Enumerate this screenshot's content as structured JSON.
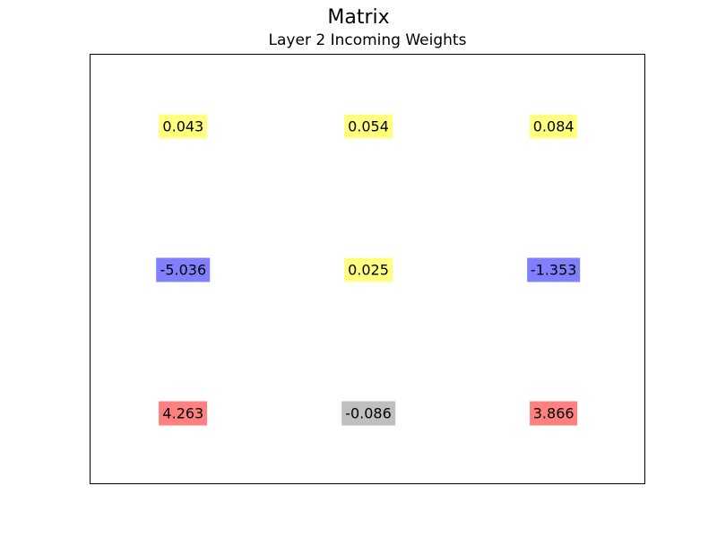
{
  "figure_title": "Matrix",
  "chart_data": {
    "type": "table",
    "title": "Layer 2 Incoming Weights",
    "rows": 3,
    "cols": 3,
    "cells": [
      [
        {
          "label": "0.043",
          "value": 0.043,
          "color": "#ffff80"
        },
        {
          "label": "0.054",
          "value": 0.054,
          "color": "#ffff80"
        },
        {
          "label": "0.084",
          "value": 0.084,
          "color": "#ffff80"
        }
      ],
      [
        {
          "label": "-5.036",
          "value": -5.036,
          "color": "#8080ff"
        },
        {
          "label": "0.025",
          "value": 0.025,
          "color": "#ffff80"
        },
        {
          "label": "-1.353",
          "value": -1.353,
          "color": "#8080ff"
        }
      ],
      [
        {
          "label": "4.263",
          "value": 4.263,
          "color": "#ff8080"
        },
        {
          "label": "-0.086",
          "value": -0.086,
          "color": "#bfbfbf"
        },
        {
          "label": "3.866",
          "value": 3.866,
          "color": "#ff8080"
        }
      ]
    ]
  }
}
